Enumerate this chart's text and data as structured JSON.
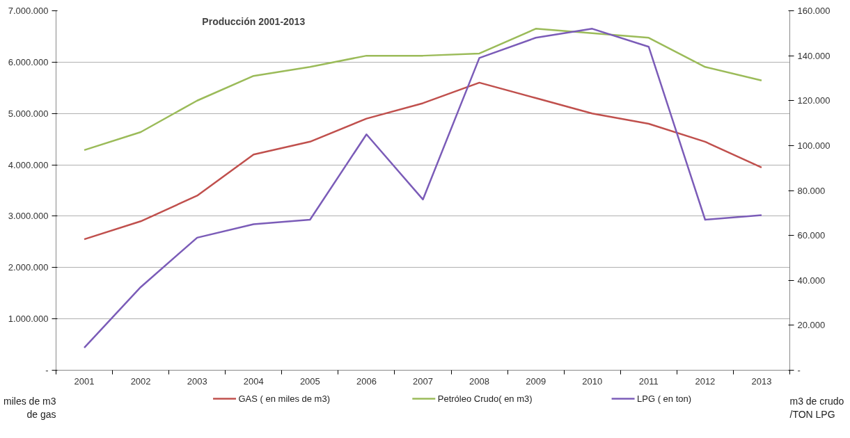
{
  "chart_data": {
    "type": "line",
    "title": "Producción 2001-2013",
    "ylabel": "miles de m3 de gas",
    "y2label": "m3 de crudo /TON LPG",
    "categories": [
      "2001",
      "2002",
      "2003",
      "2004",
      "2005",
      "2006",
      "2007",
      "2008",
      "2009",
      "2010",
      "2011",
      "2012",
      "2013"
    ],
    "series": [
      {
        "name": "GAS ( en miles de m3)",
        "color": "#c0504d",
        "values": [
          2550000,
          2900000,
          3400000,
          4200000,
          4450000,
          4900000,
          5200000,
          5600000,
          5300000,
          5000000,
          4800000,
          4450000,
          3950000
        ]
      },
      {
        "name": "Petróleo Crudo( en m3)",
        "color": "#9bbb59",
        "axis": "y2",
        "values": [
          98000,
          106000,
          120000,
          131000,
          135000,
          140000,
          140000,
          141000,
          152000,
          150000,
          148000,
          135000,
          129000
        ]
      },
      {
        "name": "LPG ( en ton)",
        "color": "#7b5cb8",
        "axis": "y2",
        "values": [
          10000,
          37000,
          59000,
          65000,
          67000,
          105000,
          76000,
          139000,
          148000,
          152000,
          144000,
          67000,
          69000
        ]
      }
    ],
    "ylim": [
      0,
      7000000
    ],
    "yticks": [
      {
        "value": 0,
        "label": "-"
      },
      {
        "value": 1000000,
        "label": "1.000.000"
      },
      {
        "value": 2000000,
        "label": "2.000.000"
      },
      {
        "value": 3000000,
        "label": "3.000.000"
      },
      {
        "value": 4000000,
        "label": "4.000.000"
      },
      {
        "value": 5000000,
        "label": "5.000.000"
      },
      {
        "value": 6000000,
        "label": "6.000.000"
      },
      {
        "value": 7000000,
        "label": "7.000.000"
      }
    ],
    "y2lim": [
      0,
      160000
    ],
    "y2ticks": [
      {
        "value": 0,
        "label": "-"
      },
      {
        "value": 20000,
        "label": "20.000"
      },
      {
        "value": 40000,
        "label": "40.000"
      },
      {
        "value": 60000,
        "label": "60.000"
      },
      {
        "value": 80000,
        "label": "80.000"
      },
      {
        "value": 100000,
        "label": "100.000"
      },
      {
        "value": 120000,
        "label": "120.000"
      },
      {
        "value": 140000,
        "label": "140.000"
      },
      {
        "value": 160000,
        "label": "160.000"
      }
    ],
    "grid": "y",
    "legend": "bottom",
    "marker": "none",
    "line_style": "solid"
  }
}
